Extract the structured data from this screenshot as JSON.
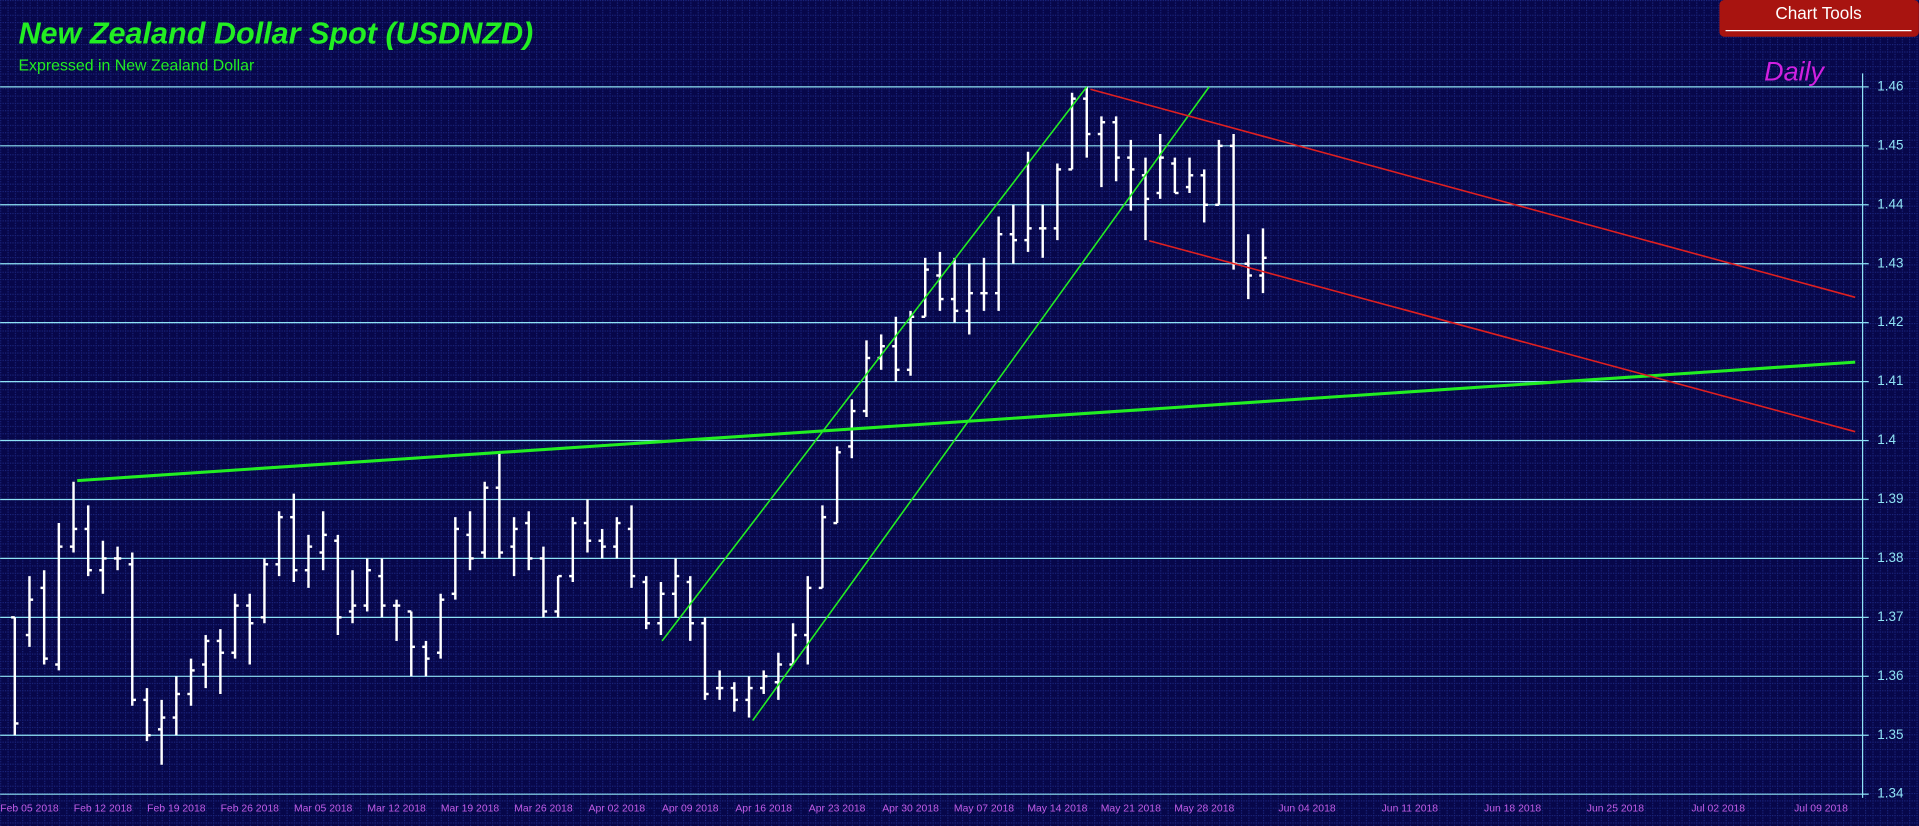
{
  "chart_tools": "Chart Tools",
  "chart_data": {
    "type": "ohlc",
    "title": "New Zealand Dollar Spot (USDNZD)",
    "subtitle": "Expressed in New Zealand Dollar",
    "period": "Daily",
    "color": "#ffffff",
    "grid": true,
    "grid_color": "#8fe3f5",
    "ylim": [
      1.34,
      1.46
    ],
    "yticks": [
      1.34,
      1.35,
      1.36,
      1.37,
      1.38,
      1.39,
      1.4,
      1.41,
      1.42,
      1.43,
      1.44,
      1.45,
      1.46
    ],
    "categories": [
      null,
      "Feb 05 2018",
      null,
      null,
      null,
      null,
      "Feb 12 2018",
      null,
      null,
      null,
      null,
      "Feb 19 2018",
      null,
      null,
      null,
      null,
      "Feb 26 2018",
      null,
      null,
      null,
      null,
      "Mar 05 2018",
      null,
      null,
      null,
      null,
      "Mar 12 2018",
      null,
      null,
      null,
      null,
      "Mar 19 2018",
      null,
      null,
      null,
      null,
      "Mar 26 2018",
      null,
      null,
      null,
      null,
      "Apr 02 2018",
      null,
      null,
      null,
      null,
      "Apr 09 2018",
      null,
      null,
      null,
      null,
      "Apr 16 2018",
      null,
      null,
      null,
      null,
      "Apr 23 2018",
      null,
      null,
      null,
      null,
      "Apr 30 2018",
      null,
      null,
      null,
      null,
      "May 07 2018",
      null,
      null,
      null,
      null,
      "May 14 2018",
      null,
      null,
      null,
      null,
      "May 21 2018",
      null,
      null,
      null,
      null,
      "May 28 2018",
      null,
      null,
      null,
      null,
      null,
      null,
      "Jun 04 2018",
      null,
      null,
      null,
      null,
      null,
      null,
      "Jun 11 2018",
      null,
      null,
      null,
      null,
      null,
      null,
      "Jun 18 2018",
      null,
      null,
      null,
      null,
      null,
      null,
      "Jun 25 2018",
      null,
      null,
      null,
      null,
      null,
      null,
      "Jul 02 2018",
      null,
      null,
      null,
      null,
      null,
      null,
      "Jul 09 2018",
      null,
      null,
      null
    ],
    "open": [
      1.37,
      1.367,
      1.375,
      1.362,
      1.382,
      1.385,
      1.378,
      1.38,
      1.379,
      1.356,
      1.351,
      1.353,
      1.357,
      1.362,
      1.366,
      1.364,
      1.372,
      1.37,
      1.379,
      1.387,
      1.378,
      1.381,
      1.383,
      1.371,
      1.372,
      1.377,
      1.372,
      1.371,
      1.365,
      1.364,
      1.374,
      1.384,
      1.381,
      1.392,
      1.382,
      1.386,
      1.38,
      1.371,
      1.377,
      1.386,
      1.383,
      1.382,
      1.385,
      1.376,
      1.369,
      1.374,
      1.376,
      1.369,
      1.358,
      1.358,
      1.356,
      1.358,
      1.359,
      1.362,
      1.367,
      1.375,
      1.386,
      1.399,
      1.405,
      1.414,
      1.416,
      1.412,
      1.421,
      1.428,
      1.424,
      1.422,
      1.425,
      1.425,
      1.435,
      1.434,
      1.436,
      1.436,
      1.446,
      1.458,
      1.452,
      1.454,
      1.448,
      1.445,
      1.442,
      1.447,
      1.443,
      1.445,
      1.44,
      1.45,
      1.43,
      1.428,
      null,
      null,
      null,
      null,
      null,
      null,
      null,
      null,
      null,
      null,
      null,
      null,
      null,
      null,
      null,
      null,
      null,
      null,
      null,
      null,
      null,
      null,
      null,
      null,
      null,
      null,
      null,
      null,
      null,
      null,
      null,
      null,
      null,
      null,
      null,
      null,
      null,
      null,
      null,
      null,
      null
    ],
    "high": [
      1.37,
      1.377,
      1.378,
      1.386,
      1.393,
      1.389,
      1.383,
      1.382,
      1.381,
      1.358,
      1.356,
      1.36,
      1.363,
      1.367,
      1.368,
      1.374,
      1.374,
      1.38,
      1.388,
      1.391,
      1.384,
      1.388,
      1.384,
      1.378,
      1.38,
      1.38,
      1.373,
      1.371,
      1.366,
      1.374,
      1.387,
      1.388,
      1.393,
      1.398,
      1.387,
      1.388,
      1.382,
      1.377,
      1.387,
      1.39,
      1.385,
      1.387,
      1.389,
      1.377,
      1.376,
      1.38,
      1.377,
      1.37,
      1.361,
      1.359,
      1.36,
      1.361,
      1.364,
      1.369,
      1.377,
      1.389,
      1.399,
      1.407,
      1.417,
      1.418,
      1.421,
      1.422,
      1.431,
      1.432,
      1.431,
      1.43,
      1.431,
      1.438,
      1.44,
      1.449,
      1.44,
      1.447,
      1.459,
      1.46,
      1.455,
      1.455,
      1.451,
      1.448,
      1.452,
      1.448,
      1.448,
      1.446,
      1.451,
      1.452,
      1.435,
      1.436,
      null,
      null,
      null,
      null,
      null,
      null,
      null,
      null,
      null,
      null,
      null,
      null,
      null,
      null,
      null,
      null,
      null,
      null,
      null,
      null,
      null,
      null,
      null,
      null,
      null,
      null,
      null,
      null,
      null,
      null,
      null,
      null,
      null,
      null,
      null,
      null,
      null,
      null,
      null,
      null,
      null
    ],
    "low": [
      1.35,
      1.365,
      1.362,
      1.361,
      1.381,
      1.377,
      1.374,
      1.378,
      1.355,
      1.349,
      1.345,
      1.35,
      1.355,
      1.358,
      1.357,
      1.363,
      1.362,
      1.369,
      1.377,
      1.376,
      1.375,
      1.378,
      1.367,
      1.369,
      1.371,
      1.37,
      1.366,
      1.36,
      1.36,
      1.363,
      1.373,
      1.378,
      1.38,
      1.38,
      1.377,
      1.378,
      1.37,
      1.37,
      1.376,
      1.381,
      1.38,
      1.38,
      1.375,
      1.368,
      1.367,
      1.37,
      1.366,
      1.356,
      1.356,
      1.354,
      1.353,
      1.357,
      1.356,
      1.362,
      1.362,
      1.375,
      1.386,
      1.397,
      1.404,
      1.412,
      1.41,
      1.411,
      1.421,
      1.422,
      1.42,
      1.418,
      1.422,
      1.422,
      1.43,
      1.432,
      1.431,
      1.434,
      1.446,
      1.448,
      1.443,
      1.444,
      1.439,
      1.434,
      1.441,
      1.442,
      1.442,
      1.437,
      1.44,
      1.429,
      1.424,
      1.425,
      null,
      null,
      null,
      null,
      null,
      null,
      null,
      null,
      null,
      null,
      null,
      null,
      null,
      null,
      null,
      null,
      null,
      null,
      null,
      null,
      null,
      null,
      null,
      null,
      null,
      null,
      null,
      null,
      null,
      null,
      null,
      null,
      null,
      null,
      null,
      null,
      null,
      null,
      null,
      null,
      null
    ],
    "close": [
      1.352,
      1.373,
      1.363,
      1.382,
      1.385,
      1.378,
      1.38,
      1.38,
      1.356,
      1.35,
      1.353,
      1.357,
      1.361,
      1.366,
      1.364,
      1.372,
      1.369,
      1.379,
      1.387,
      1.378,
      1.382,
      1.384,
      1.37,
      1.372,
      1.378,
      1.372,
      1.372,
      1.365,
      1.363,
      1.373,
      1.385,
      1.38,
      1.392,
      1.381,
      1.385,
      1.38,
      1.371,
      1.377,
      1.386,
      1.383,
      1.382,
      1.386,
      1.377,
      1.369,
      1.374,
      1.377,
      1.369,
      1.357,
      1.358,
      1.356,
      1.358,
      1.36,
      1.362,
      1.367,
      1.375,
      1.387,
      1.398,
      1.405,
      1.414,
      1.416,
      1.412,
      1.421,
      1.429,
      1.424,
      1.422,
      1.425,
      1.425,
      1.435,
      1.434,
      1.436,
      1.436,
      1.446,
      1.458,
      1.452,
      1.454,
      1.448,
      1.446,
      1.441,
      1.448,
      1.442,
      1.445,
      1.44,
      1.45,
      1.43,
      1.428,
      1.431,
      null,
      null,
      null,
      null,
      null,
      null,
      null,
      null,
      null,
      null,
      null,
      null,
      null,
      null,
      null,
      null,
      null,
      null,
      null,
      null,
      null,
      null,
      null,
      null,
      null,
      null,
      null,
      null,
      null,
      null,
      null,
      null,
      null,
      null,
      null,
      null,
      null,
      null,
      null,
      null,
      null
    ],
    "trendlines": [
      {
        "color": "#22ee22",
        "points": [
          [
            4.25,
            1.3932
          ],
          [
            125.33,
            1.4133
          ]
        ]
      },
      {
        "color": "#22ee22",
        "points": [
          [
            44.08,
            1.366
          ],
          [
            73,
            1.46
          ]
        ]
      },
      {
        "color": "#22ee22",
        "points": [
          [
            50.25,
            1.3525
          ],
          [
            81.33,
            1.46
          ]
        ]
      },
      {
        "color": "#e02020",
        "points": [
          [
            73.25,
            1.4596
          ],
          [
            125.33,
            1.4243
          ]
        ]
      },
      {
        "color": "#e02020",
        "points": [
          [
            77.25,
            1.4339
          ],
          [
            125.33,
            1.4015
          ]
        ]
      }
    ]
  }
}
